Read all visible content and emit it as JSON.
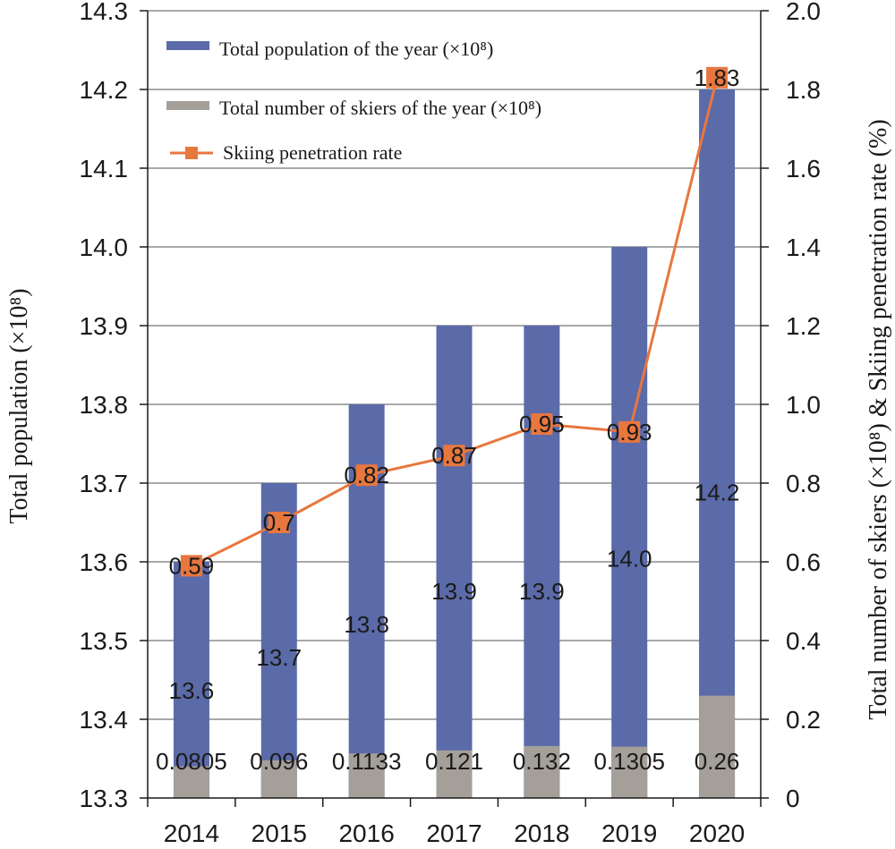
{
  "chart_data": {
    "type": "bar",
    "categories": [
      "2014",
      "2015",
      "2016",
      "2017",
      "2018",
      "2019",
      "2020"
    ],
    "left_axis": {
      "title": "Total population (×10⁸)",
      "min": 13.3,
      "max": 14.3,
      "ticks": [
        "13.3",
        "13.4",
        "13.5",
        "13.6",
        "13.7",
        "13.8",
        "13.9",
        "14.0",
        "14.1",
        "14.2",
        "14.3"
      ]
    },
    "right_axis": {
      "title": "Total number of skiers (×10⁸) & Skiing penetration rate (%)",
      "min": 0,
      "max": 2.0,
      "ticks": [
        "0",
        "0.2",
        "0.4",
        "0.6",
        "0.8",
        "1.0",
        "1.2",
        "1.4",
        "1.6",
        "1.8",
        "2.0"
      ]
    },
    "series": [
      {
        "name": "Total population of the year (×10⁸)",
        "type": "bar",
        "axis": "left",
        "color": "#5b6aa8",
        "values": [
          13.6,
          13.7,
          13.8,
          13.9,
          13.9,
          14.0,
          14.2
        ],
        "labels": [
          "13.6",
          "13.7",
          "13.8",
          "13.9",
          "13.9",
          "14.0",
          "14.2"
        ]
      },
      {
        "name": "Total number of skiers of the year (×10⁸)",
        "type": "bar",
        "axis": "right",
        "color": "#a59f9a",
        "values": [
          0.0805,
          0.096,
          0.1133,
          0.121,
          0.132,
          0.1305,
          0.26
        ],
        "labels": [
          "0.0805",
          "0.096",
          "0.1133",
          "0.121",
          "0.132",
          "0.1305",
          "0.26"
        ]
      },
      {
        "name": "Skiing penetration rate",
        "type": "line",
        "axis": "right",
        "color": "#e8773f",
        "values": [
          0.59,
          0.7,
          0.82,
          0.87,
          0.95,
          0.93,
          1.83
        ],
        "labels": [
          "0.59",
          "0.7",
          "0.82",
          "0.87",
          "0.95",
          "0.93",
          "1.83"
        ]
      }
    ],
    "grid": "horizontal",
    "legend_position": "top-left"
  }
}
